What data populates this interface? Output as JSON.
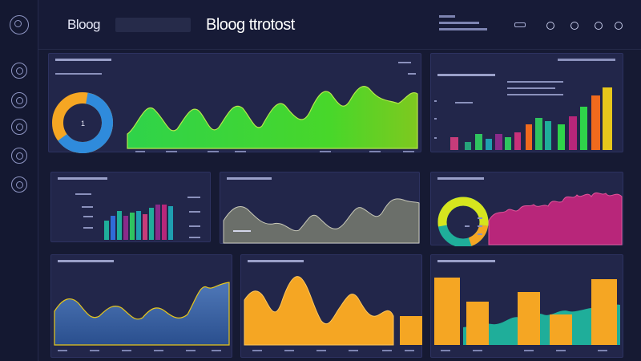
{
  "header": {
    "brand": "Bloog",
    "title": "Bloog ttrotost",
    "search_placeholder": ""
  },
  "sidebar": {
    "icons": [
      "logo-icon",
      "home-icon",
      "gear-icon",
      "chart-icon",
      "user-icon",
      "settings-icon"
    ]
  },
  "colors": {
    "background": "#161a33",
    "panel": "#22264a",
    "green": "#2fd34a",
    "blue": "#2f6bd8",
    "orange": "#f5a623",
    "magenta": "#b8267a",
    "teal": "#1fae9a"
  },
  "panels": {
    "donut_1": {
      "center_label": "1",
      "progress": 0.62
    },
    "donut_2": {
      "progress": 0.55
    }
  }
}
